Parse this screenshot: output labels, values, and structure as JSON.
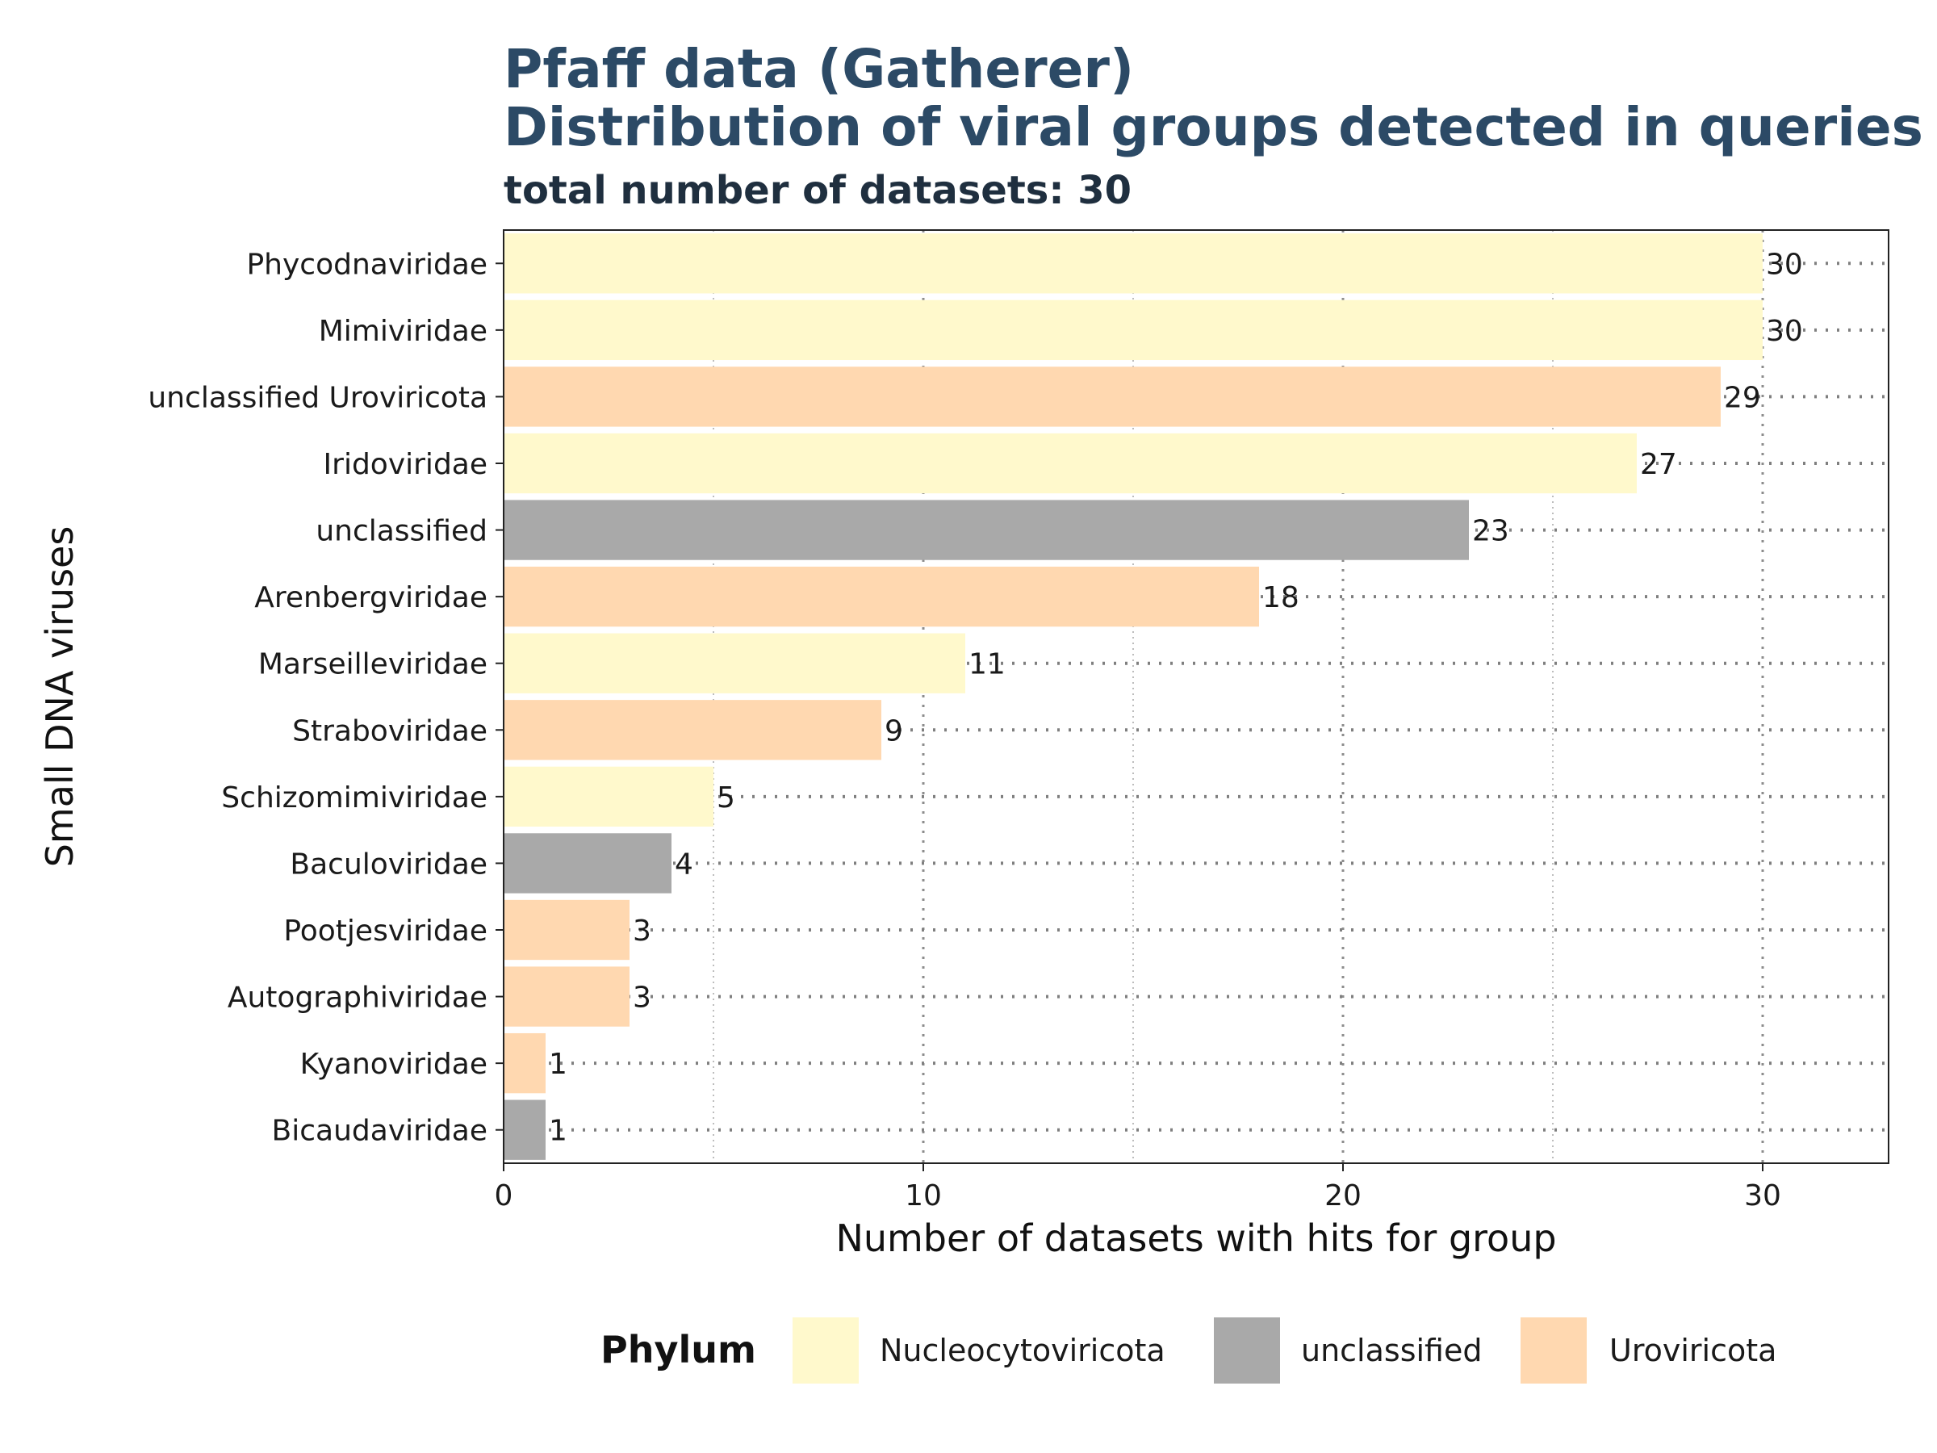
{
  "chart_data": {
    "type": "bar",
    "orientation": "horizontal",
    "title_lines": [
      "Pfaff data (Gatherer)",
      "Distribution of viral groups detected in queries"
    ],
    "subtitle": "total number of datasets: 30",
    "xlabel": "Number of datasets with hits for group",
    "ylabel": "Small DNA viruses",
    "xlim": [
      0,
      33
    ],
    "xticks": [
      0,
      10,
      20,
      30
    ],
    "grid": true,
    "categories": [
      "Phycodnaviridae",
      "Mimiviridae",
      "unclassified Uroviricota",
      "Iridoviridae",
      "unclassified",
      "Arenbergviridae",
      "Marseilleviridae",
      "Straboviridae",
      "Schizomimiviridae",
      "Baculoviridae",
      "Pootjesviridae",
      "Autographiviridae",
      "Kyanoviridae",
      "Bicaudaviridae"
    ],
    "values": [
      30,
      30,
      29,
      27,
      23,
      18,
      11,
      9,
      5,
      4,
      3,
      3,
      1,
      1
    ],
    "groups": [
      "Nucleocytoviricota",
      "Nucleocytoviricota",
      "Uroviricota",
      "Nucleocytoviricota",
      "unclassified",
      "Uroviricota",
      "Nucleocytoviricota",
      "Uroviricota",
      "Nucleocytoviricota",
      "unclassified",
      "Uroviricota",
      "Uroviricota",
      "Uroviricota",
      "unclassified"
    ],
    "legend": {
      "title": "Phylum",
      "position": "bottom",
      "items": [
        {
          "label": "Nucleocytoviricota",
          "color": "#FFF9CC"
        },
        {
          "label": "unclassified",
          "color": "#A9A9A9"
        },
        {
          "label": "Uroviricota",
          "color": "#FFD8B0"
        }
      ]
    },
    "colors": {
      "title": "#2C4A66",
      "subtitle": "#1F2F3F"
    }
  }
}
